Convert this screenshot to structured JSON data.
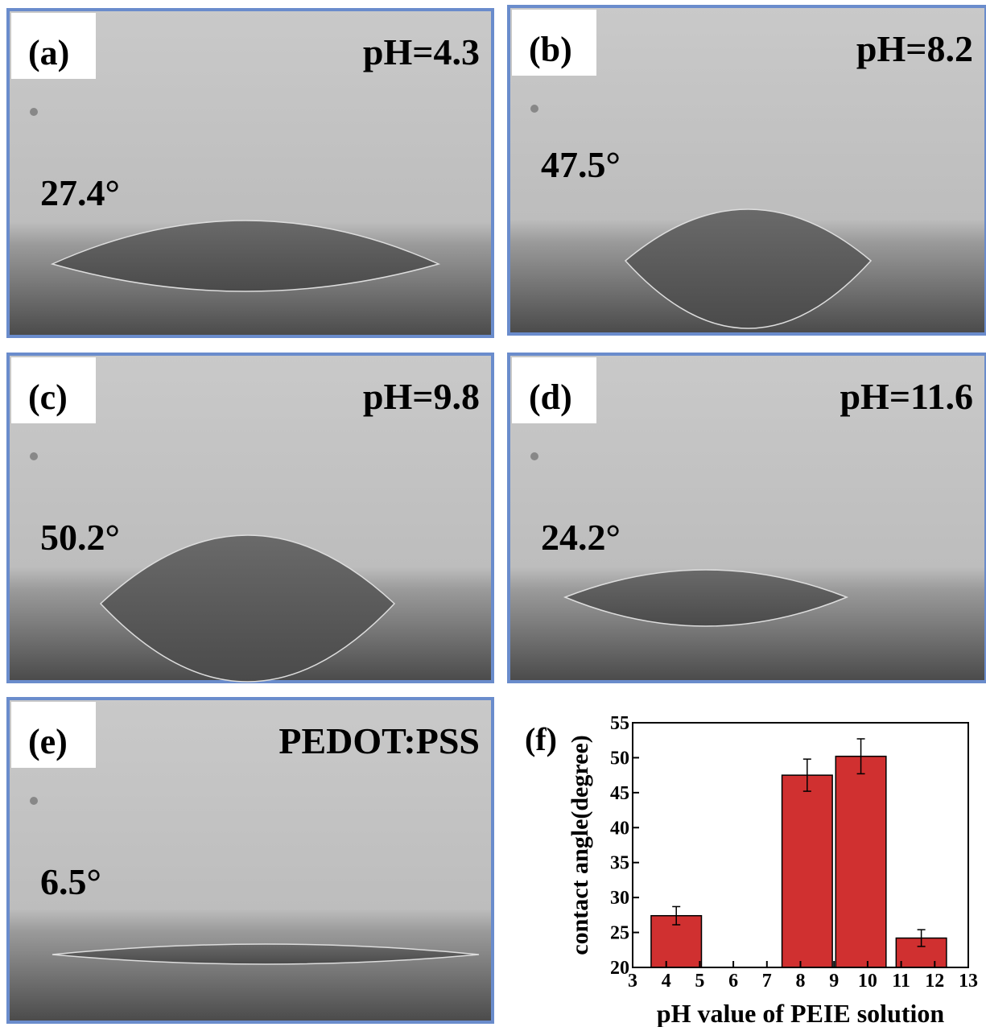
{
  "panels": [
    {
      "label": "(a)",
      "condition": "pH=4.3",
      "angle": "27.4°"
    },
    {
      "label": "(b)",
      "condition": "pH=8.2",
      "angle": "47.5°"
    },
    {
      "label": "(c)",
      "condition": "pH=9.8",
      "angle": "50.2°"
    },
    {
      "label": "(d)",
      "condition": "pH=11.6",
      "angle": "24.2°"
    },
    {
      "label": "(e)",
      "condition": "PEDOT:PSS",
      "angle": "6.5°"
    }
  ],
  "chart_data": {
    "type": "bar",
    "panel_label": "(f)",
    "x_label": "pH value of PEIE solution",
    "y_label": "contact angle(degree)",
    "x": [
      4.3,
      8.2,
      9.8,
      11.6
    ],
    "values": [
      27.4,
      47.5,
      50.2,
      24.2
    ],
    "errors": [
      1.3,
      2.3,
      2.5,
      1.2
    ],
    "color": "#d03030",
    "xlim": [
      3,
      13
    ],
    "xticks": [
      3,
      4,
      5,
      6,
      7,
      8,
      9,
      10,
      11,
      12,
      13
    ],
    "ylim": [
      20,
      55
    ],
    "yticks": [
      20,
      25,
      30,
      35,
      40,
      45,
      50,
      55
    ]
  }
}
